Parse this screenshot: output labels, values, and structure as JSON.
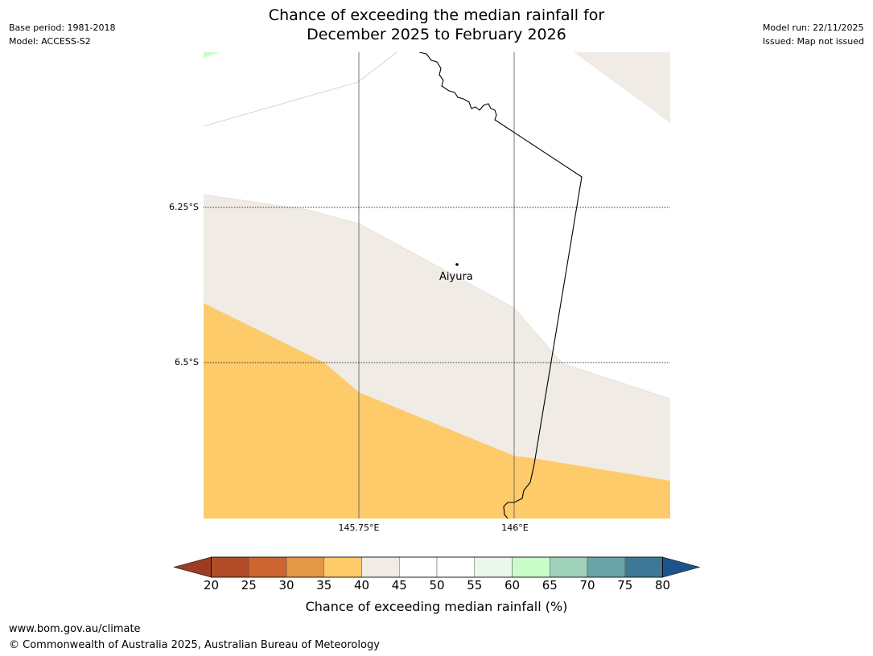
{
  "header": {
    "base_period": "Base period: 1981-2018",
    "model": "Model: ACCESS-S2",
    "model_run": "Model run: 22/11/2025",
    "issued": "Issued: Map not issued",
    "title_line1": "Chance of exceeding the median rainfall for",
    "title_line2": "December 2025 to February 2026"
  },
  "map": {
    "lat_labels": [
      "6.25°S",
      "6.5°S"
    ],
    "lon_labels": [
      "145.75°E",
      "146°E"
    ],
    "place": {
      "name": "Aiyura"
    },
    "colors": {
      "band_35_40": "#fdcb69",
      "band_40_45": "#f0ebe5",
      "band_60_65": "#c9fcc9",
      "border": "#000000",
      "gridline": "#555555"
    }
  },
  "legend": {
    "ticks": [
      "20",
      "25",
      "30",
      "35",
      "40",
      "45",
      "50",
      "55",
      "60",
      "65",
      "70",
      "75",
      "80"
    ],
    "colors": [
      "#9c3d22",
      "#b24c26",
      "#cc6530",
      "#e39846",
      "#fdcb69",
      "#f0ebe5",
      "#ffffff",
      "#ffffff",
      "#eaf7ea",
      "#c9fcc9",
      "#9fd2b9",
      "#6ba4a6",
      "#3f7896",
      "#1c538c"
    ],
    "label": "Chance of exceeding median rainfall (%)"
  },
  "footer": {
    "url": "www.bom.gov.au/climate",
    "copyright": "© Commonwealth of Australia 2025, Australian Bureau of Meteorology"
  }
}
